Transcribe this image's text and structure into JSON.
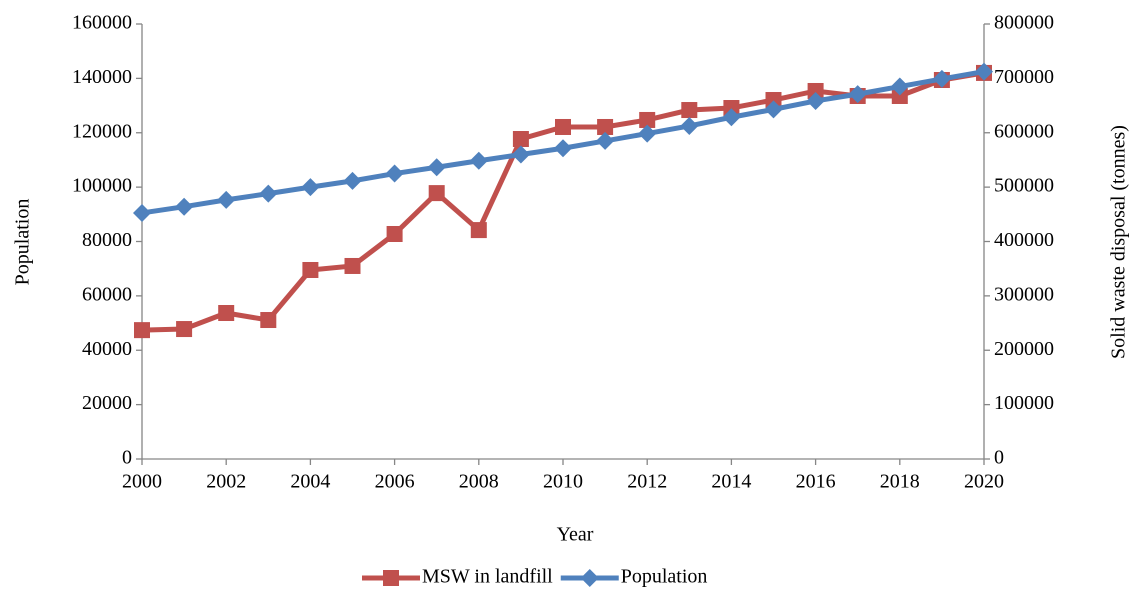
{
  "chart_data": {
    "type": "line",
    "x_label": "Year",
    "y_label": "Population",
    "y2_label": "Solid waste disposal (tonnes)",
    "x": [
      2000,
      2001,
      2002,
      2003,
      2004,
      2005,
      2006,
      2007,
      2008,
      2009,
      2010,
      2011,
      2012,
      2013,
      2014,
      2015,
      2016,
      2017,
      2018,
      2019,
      2020
    ],
    "xlim": [
      2000,
      2020
    ],
    "xticks": [
      2000,
      2002,
      2004,
      2006,
      2008,
      2010,
      2012,
      2014,
      2016,
      2018,
      2020
    ],
    "ylim": [
      0,
      160000
    ],
    "yticks": [
      0,
      20000,
      40000,
      60000,
      80000,
      100000,
      120000,
      140000,
      160000
    ],
    "y2lim": [
      0,
      800000
    ],
    "y2ticks": [
      0,
      100000,
      200000,
      300000,
      400000,
      500000,
      600000,
      700000,
      800000
    ],
    "legend": "bottom",
    "grid": false,
    "series": [
      {
        "name": "MSW in landfill",
        "color": "#c0504d",
        "marker": "square",
        "axis": "y2",
        "values": [
          237000,
          239000,
          268500,
          255600,
          347600,
          355000,
          413800,
          489000,
          421000,
          588500,
          610600,
          610600,
          623500,
          641800,
          645500,
          660200,
          676800,
          667600,
          667600,
          697000,
          710000
        ]
      },
      {
        "name": "Population",
        "color": "#4f81bd",
        "marker": "diamond",
        "axis": "y",
        "values": [
          90500,
          92800,
          95300,
          97600,
          100000,
          102300,
          105000,
          107300,
          109700,
          112000,
          114300,
          117000,
          119700,
          122500,
          125700,
          128600,
          131700,
          134200,
          137000,
          139800,
          142500
        ]
      }
    ]
  }
}
